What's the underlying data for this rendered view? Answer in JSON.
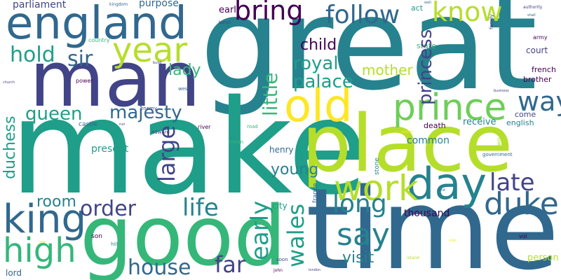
{
  "background": "#ffffff",
  "palette": {
    "dark_purple": "#440154",
    "indigo": "#414487",
    "blue": "#31688e",
    "teal": "#26828e",
    "green_teal": "#1f9e89",
    "green": "#35b779",
    "lime": "#6ece58",
    "yellow_green": "#b5de2b",
    "yellow": "#fde725"
  },
  "words": [
    {
      "text": "great"
    },
    {
      "text": "make"
    },
    {
      "text": "time"
    },
    {
      "text": "good"
    },
    {
      "text": "man"
    },
    {
      "text": "place"
    },
    {
      "text": "england"
    },
    {
      "text": "prince"
    },
    {
      "text": "old"
    },
    {
      "text": "day"
    },
    {
      "text": "king"
    },
    {
      "text": "year"
    },
    {
      "text": "work"
    },
    {
      "text": "duke"
    },
    {
      "text": "high"
    },
    {
      "text": "follow"
    },
    {
      "text": "bring"
    },
    {
      "text": "know"
    },
    {
      "text": "way"
    },
    {
      "text": "say"
    },
    {
      "text": "long"
    },
    {
      "text": "late"
    },
    {
      "text": "life"
    },
    {
      "text": "order"
    },
    {
      "text": "house"
    },
    {
      "text": "far"
    },
    {
      "text": "hold"
    },
    {
      "text": "sir"
    },
    {
      "text": "lady"
    },
    {
      "text": "queen"
    },
    {
      "text": "majesty"
    },
    {
      "text": "royal"
    },
    {
      "text": "palace"
    },
    {
      "text": "child"
    },
    {
      "text": "mother"
    },
    {
      "text": "little"
    },
    {
      "text": "large"
    },
    {
      "text": "early"
    },
    {
      "text": "wales"
    },
    {
      "text": "princess"
    },
    {
      "text": "duchess"
    },
    {
      "text": "room"
    },
    {
      "text": "visit"
    },
    {
      "text": "young"
    },
    {
      "text": "parliament"
    },
    {
      "text": "purpose"
    },
    {
      "text": "earl"
    },
    {
      "text": "present"
    },
    {
      "text": "henry"
    },
    {
      "text": "common"
    },
    {
      "text": "receive"
    },
    {
      "text": "english"
    },
    {
      "text": "come"
    },
    {
      "text": "death"
    },
    {
      "text": "thousand"
    },
    {
      "text": "city"
    },
    {
      "text": "court"
    },
    {
      "text": "brother"
    },
    {
      "text": "french"
    },
    {
      "text": "state"
    },
    {
      "text": "act"
    },
    {
      "text": "person"
    },
    {
      "text": "lord"
    },
    {
      "text": "son"
    },
    {
      "text": "army"
    },
    {
      "text": "castle"
    },
    {
      "text": "country"
    },
    {
      "text": "power"
    },
    {
      "text": "edward"
    },
    {
      "text": "enemy"
    },
    {
      "text": "river"
    },
    {
      "text": "road"
    },
    {
      "text": "crown"
    },
    {
      "text": "west"
    },
    {
      "text": "hill"
    },
    {
      "text": "soon"
    },
    {
      "text": "john"
    },
    {
      "text": "island"
    },
    {
      "text": "france"
    },
    {
      "text": "stone"
    },
    {
      "text": "town"
    },
    {
      "text": "government"
    },
    {
      "text": "water"
    },
    {
      "text": "vol"
    },
    {
      "text": "kingdom"
    },
    {
      "text": "baron"
    },
    {
      "text": "authority"
    },
    {
      "text": "family"
    },
    {
      "text": "well"
    },
    {
      "text": "church"
    },
    {
      "text": "run"
    },
    {
      "text": "land"
    },
    {
      "text": "build"
    },
    {
      "text": "shall"
    },
    {
      "text": "side"
    },
    {
      "text": "business"
    },
    {
      "text": "london"
    },
    {
      "text": "sea"
    }
  ]
}
